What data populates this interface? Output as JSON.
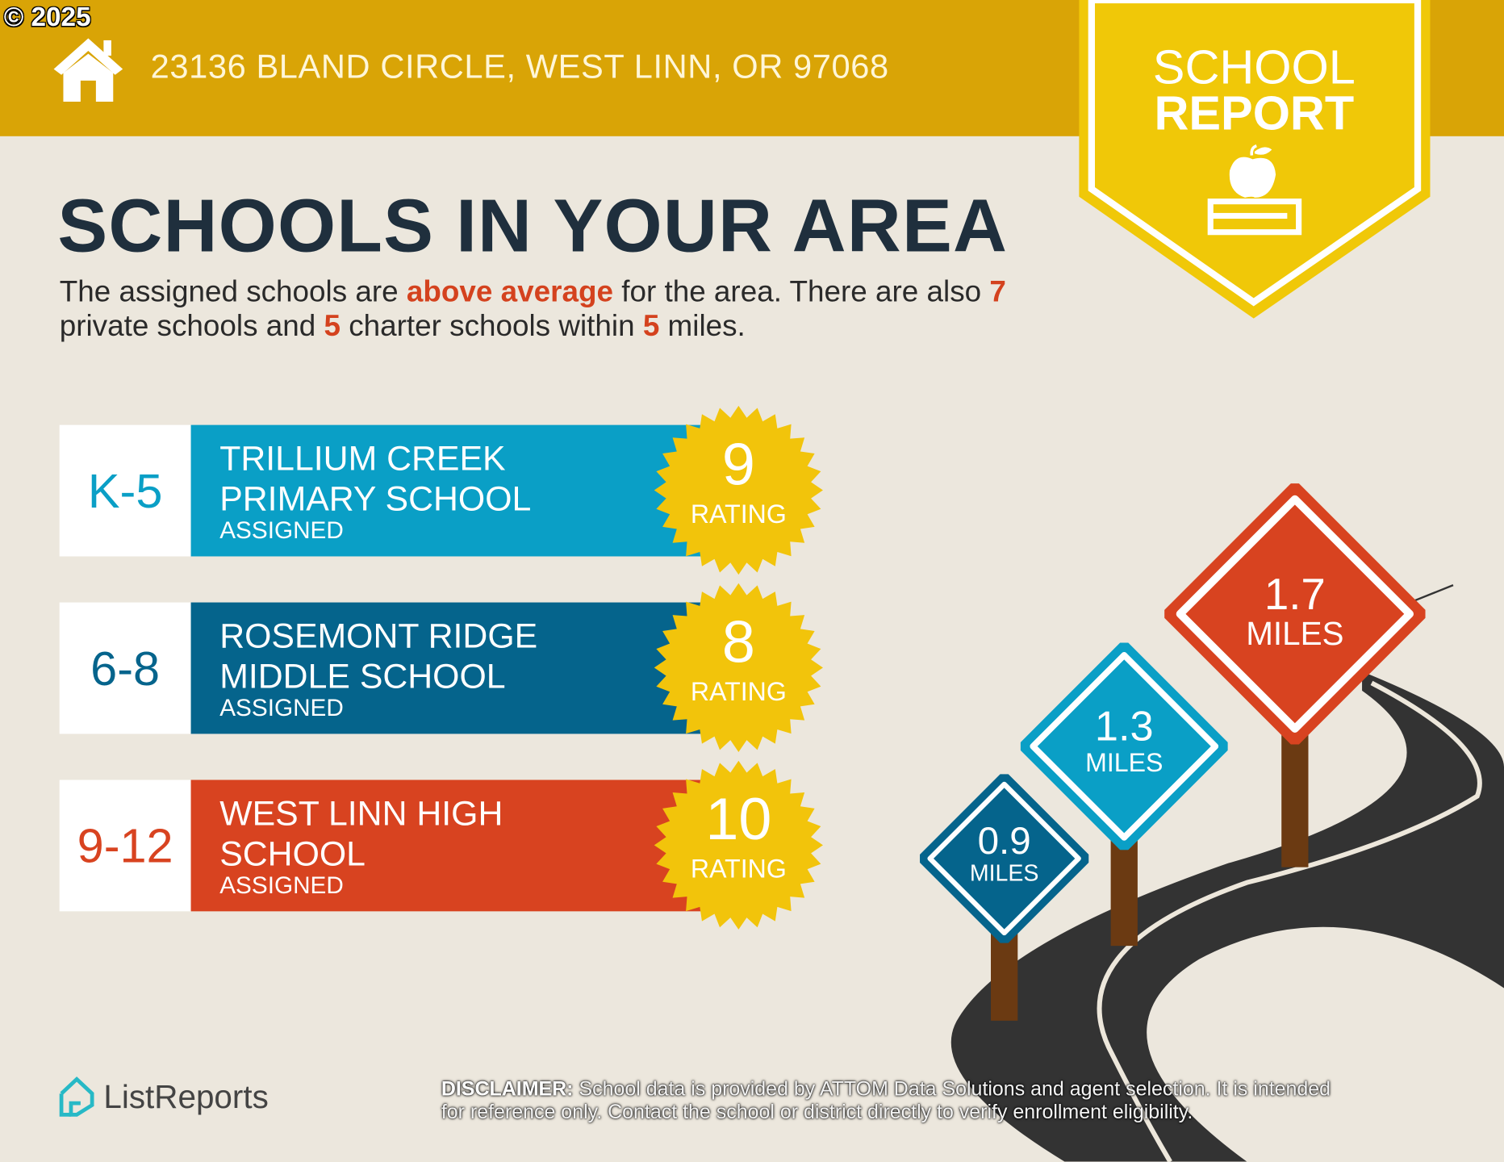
{
  "copyright": "© 2025",
  "header": {
    "address": "23136 BLAND CIRCLE, WEST LINN, OR 97068",
    "icon": "house-icon"
  },
  "badge": {
    "line1": "SCHOOL",
    "line2": "REPORT",
    "icon": "apple-on-book-icon"
  },
  "title": "SCHOOLS IN YOUR AREA",
  "summary": {
    "p1": "The assigned schools are ",
    "h1": "above average",
    "p2": " for the area. There are also ",
    "h2": "7",
    "p3": " private schools and ",
    "h3": "5",
    "p4": " charter schools within ",
    "h4": "5",
    "p5": " miles."
  },
  "schools": [
    {
      "grade": "K-5",
      "name1": "TRILLIUM CREEK",
      "name2": "PRIMARY SCHOOL",
      "status": "ASSIGNED",
      "rating": "9",
      "rating_label": "RATING",
      "color": "#0A9FC6",
      "distance": "0.9",
      "distance_unit": "MILES"
    },
    {
      "grade": "6-8",
      "name1": "ROSEMONT RIDGE",
      "name2": "MIDDLE SCHOOL",
      "status": "ASSIGNED",
      "rating": "8",
      "rating_label": "RATING",
      "color": "#05648C",
      "distance": "1.3",
      "distance_unit": "MILES"
    },
    {
      "grade": "9-12",
      "name1": "WEST LINN HIGH",
      "name2": "SCHOOL",
      "status": "ASSIGNED",
      "rating": "10",
      "rating_label": "RATING",
      "color": "#D84320",
      "distance": "1.7",
      "distance_unit": "MILES"
    }
  ],
  "signs": [
    {
      "value": "0.9",
      "unit": "MILES",
      "color": "#05648C"
    },
    {
      "value": "1.3",
      "unit": "MILES",
      "color": "#0A9FC6"
    },
    {
      "value": "1.7",
      "unit": "MILES",
      "color": "#D84320"
    }
  ],
  "footer": {
    "logo": "ListReports",
    "disclaimer_label": "DISCLAIMER:",
    "disclaimer_line1": " School data is provided by ATTOM Data Solutions and agent selection. It is intended",
    "disclaimer_line2": "for reference only. Contact the school or district directly to verify enrollment eligibility."
  },
  "colors": {
    "band": "#D9A406",
    "badge": "#F0C808",
    "seal": "#F2C40B",
    "background": "#ECE7DD",
    "title": "#1F2F3D",
    "highlight": "#D4421E"
  }
}
